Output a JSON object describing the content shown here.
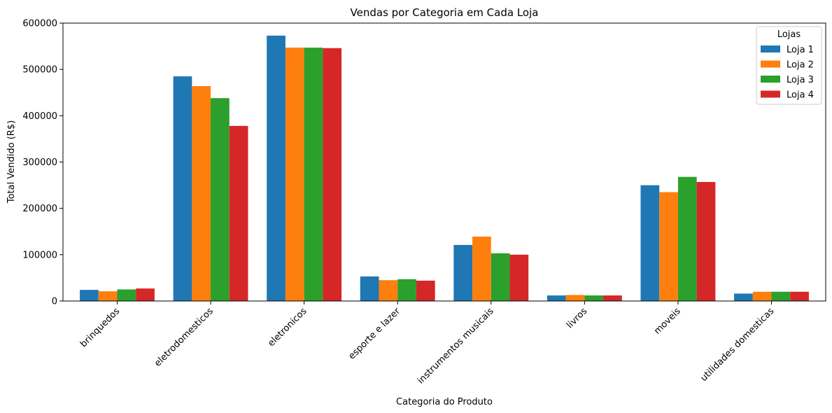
{
  "chart_data": {
    "type": "bar",
    "title": "Vendas por Categoria em Cada Loja",
    "xlabel": "Categoria do Produto",
    "ylabel": "Total Vendido (R$)",
    "ylim": [
      0,
      600000
    ],
    "yticks": [
      0,
      100000,
      200000,
      300000,
      400000,
      500000,
      600000
    ],
    "ytick_labels": [
      "0",
      "100000",
      "200000",
      "300000",
      "400000",
      "500000",
      "600000"
    ],
    "categories": [
      "brinquedos",
      "eletrodomesticos",
      "eletronicos",
      "esporte e lazer",
      "instrumentos musicais",
      "livros",
      "moveis",
      "utilidades domesticas"
    ],
    "legend_title": "Lojas",
    "legend_position": "top-right",
    "grid": false,
    "series": [
      {
        "name": "Loja 1",
        "color": "#1f77b4",
        "values": [
          24000,
          485000,
          573000,
          53000,
          121000,
          12000,
          250000,
          16000
        ]
      },
      {
        "name": "Loja 2",
        "color": "#ff7f0e",
        "values": [
          21000,
          464000,
          547000,
          45000,
          139000,
          13000,
          235000,
          20000
        ]
      },
      {
        "name": "Loja 3",
        "color": "#2ca02c",
        "values": [
          25000,
          438000,
          547000,
          47000,
          103000,
          12000,
          268000,
          20000
        ]
      },
      {
        "name": "Loja 4",
        "color": "#d62728",
        "values": [
          27000,
          378000,
          546000,
          44000,
          100000,
          12000,
          257000,
          20000
        ]
      }
    ]
  }
}
